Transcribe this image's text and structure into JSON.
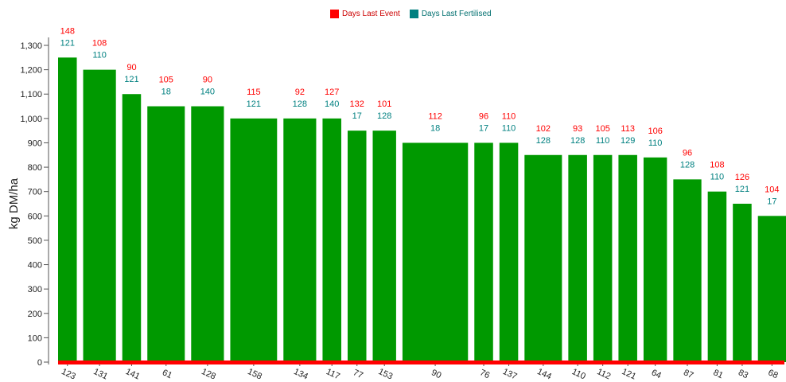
{
  "legend": {
    "items": [
      {
        "label": "Days Last Event",
        "color": "#ff0000"
      },
      {
        "label": "Days Last Fertilised",
        "color": "#008080"
      }
    ]
  },
  "colors": {
    "bar": "#009900",
    "event": "#ff0000",
    "fertilised": "#008080",
    "baseline": "#ff0000"
  },
  "chart_data": {
    "type": "bar",
    "title": "",
    "xlabel": "",
    "ylabel": "kg DM/ha",
    "ylim": [
      0,
      1300
    ],
    "yticks": [
      0,
      100,
      200,
      300,
      400,
      500,
      600,
      700,
      800,
      900,
      1000,
      1100,
      1200,
      1300
    ],
    "ytick_labels": [
      "0",
      "100",
      "200",
      "300",
      "400",
      "500",
      "600",
      "700",
      "800",
      "900",
      "1,000",
      "1,100",
      "1,200",
      "1,300"
    ],
    "categories": [
      "123",
      "131",
      "141",
      "61",
      "128",
      "158",
      "134",
      "117",
      "77",
      "153",
      "90",
      "76",
      "137",
      "144",
      "110",
      "112",
      "121",
      "64",
      "87",
      "81",
      "83",
      "68"
    ],
    "values": [
      1250,
      1200,
      1100,
      1050,
      1050,
      1000,
      1000,
      1000,
      950,
      950,
      900,
      900,
      900,
      850,
      850,
      850,
      850,
      840,
      750,
      700,
      650,
      600
    ],
    "bar_widths_relative": [
      0.2,
      0.35,
      0.2,
      0.4,
      0.35,
      0.5,
      0.35,
      0.2,
      0.2,
      0.25,
      0.7,
      0.2,
      0.2,
      0.4,
      0.2,
      0.2,
      0.2,
      0.25,
      0.3,
      0.2,
      0.2,
      0.3
    ],
    "series": [
      {
        "name": "Days Last Event",
        "values": [
          148,
          108,
          90,
          105,
          90,
          115,
          92,
          127,
          132,
          101,
          112,
          96,
          110,
          102,
          93,
          105,
          113,
          106,
          96,
          108,
          126,
          104
        ]
      },
      {
        "name": "Days Last Fertilised",
        "values": [
          121,
          110,
          121,
          18,
          140,
          121,
          128,
          140,
          17,
          128,
          18,
          17,
          110,
          128,
          128,
          110,
          129,
          110,
          128,
          110,
          121,
          17
        ]
      }
    ],
    "grid": false,
    "legend_position": "top-center"
  }
}
